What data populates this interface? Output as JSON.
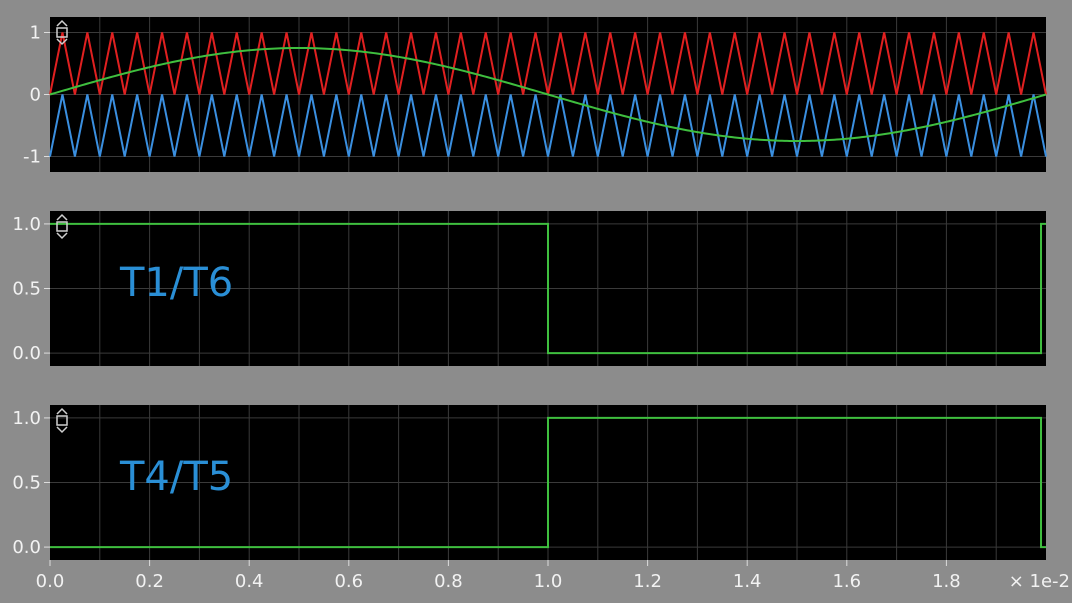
{
  "chart_data": [
    {
      "type": "line",
      "panel": "modulation",
      "ylim": [
        -1.25,
        1.25
      ],
      "yticks": [
        1,
        0,
        -1
      ],
      "ytick_labels": [
        "1",
        "0",
        "-1"
      ],
      "grid": true,
      "series": [
        {
          "kind": "triangle-carrier",
          "color": "#e02020",
          "min": 0,
          "max": 1,
          "cycles": 40,
          "xrange": [
            0,
            2
          ]
        },
        {
          "kind": "triangle-carrier",
          "color": "#3a8fe0",
          "min": -1,
          "max": 0,
          "cycles": 40,
          "xrange": [
            0,
            2
          ]
        },
        {
          "kind": "sine-reference",
          "color": "#3fbf3f",
          "amplitude": 0.75,
          "frequency_cycles": 1,
          "xrange": [
            0,
            2
          ]
        }
      ]
    },
    {
      "type": "line",
      "panel": "gate-T1-T6",
      "label": "T1/T6",
      "ylim": [
        -0.1,
        1.1
      ],
      "yticks": [
        1.0,
        0.5,
        0.0
      ],
      "ytick_labels": [
        "1.0",
        "0.5",
        "0.0"
      ],
      "grid": true,
      "series": [
        {
          "color": "#3fbf3f",
          "step": true,
          "x": [
            0,
            1.0,
            1.0,
            1.99,
            1.99,
            2.0
          ],
          "y": [
            1,
            1,
            0,
            0,
            1,
            1
          ]
        }
      ]
    },
    {
      "type": "line",
      "panel": "gate-T4-T5",
      "label": "T4/T5",
      "ylim": [
        -0.1,
        1.1
      ],
      "yticks": [
        1.0,
        0.5,
        0.0
      ],
      "ytick_labels": [
        "1.0",
        "0.5",
        "0.0"
      ],
      "grid": true,
      "series": [
        {
          "color": "#3fbf3f",
          "step": true,
          "x": [
            0,
            1.0,
            1.0,
            1.99,
            1.99,
            2.0
          ],
          "y": [
            0,
            0,
            1,
            1,
            0,
            0
          ]
        }
      ]
    }
  ],
  "x_axis": {
    "xlim": [
      0,
      2
    ],
    "ticks": [
      0.0,
      0.2,
      0.4,
      0.6,
      0.8,
      1.0,
      1.2,
      1.4,
      1.6,
      1.8
    ],
    "tick_labels": [
      "0.0",
      "0.2",
      "0.4",
      "0.6",
      "0.8",
      "1.0",
      "1.2",
      "1.4",
      "1.6",
      "1.8"
    ],
    "unit_label": "× 1e-2"
  },
  "icons": [
    "zoom-handle-icon"
  ],
  "colors": {
    "background": "#8c8c8c",
    "plot_bg": "#000000",
    "grid": "#3a3a3a",
    "text": "#f2f2f2",
    "label": "#2a8fd6"
  }
}
